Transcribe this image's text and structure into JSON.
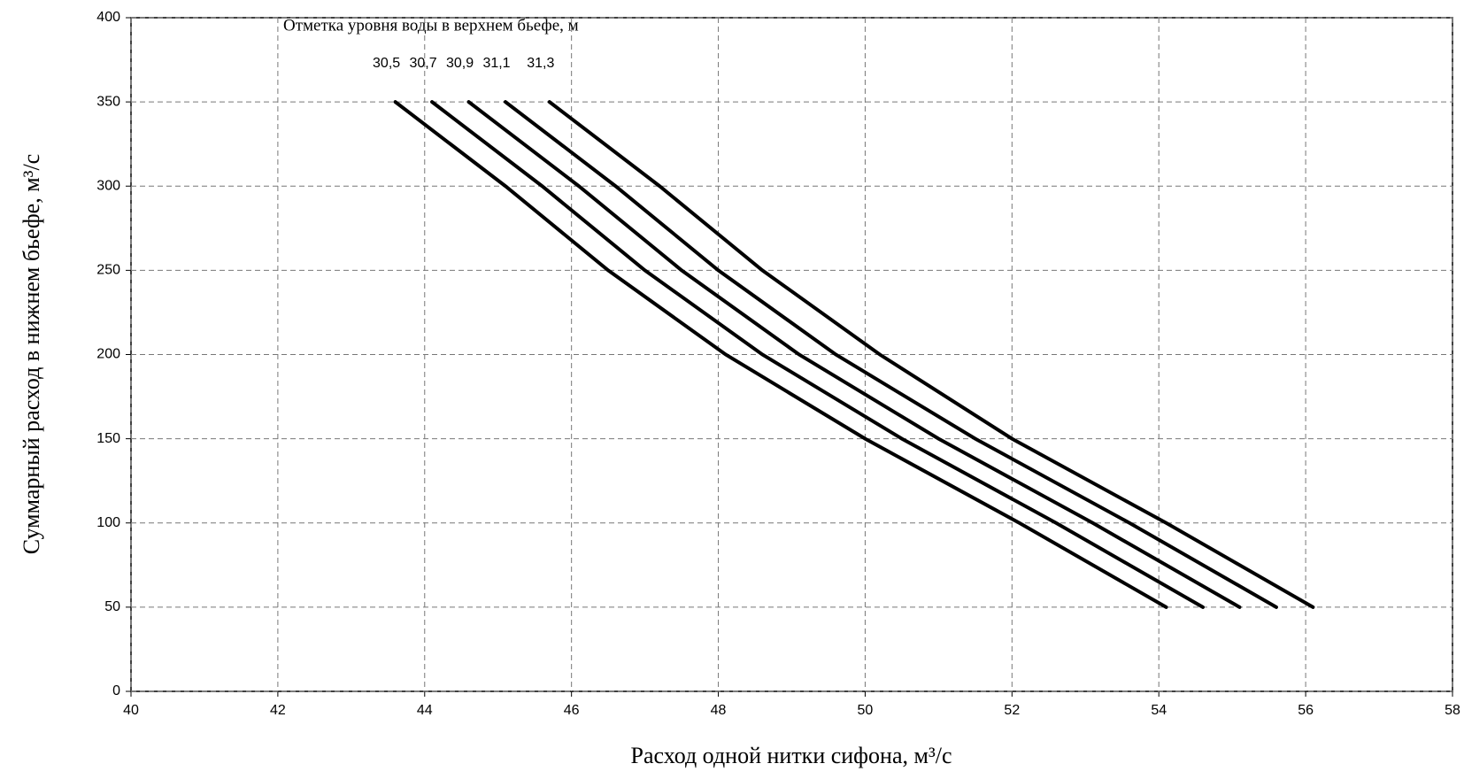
{
  "chart_data": {
    "type": "line",
    "annotation": "Отметка уровня воды в верхнем бьефе, м",
    "x_label": "Расход одной нитки сифона, м³/с",
    "y_label": "Суммарный расход в нижнем бьефе, м³/с",
    "xlim": [
      40,
      58
    ],
    "xticks": [
      40,
      42,
      44,
      46,
      48,
      50,
      52,
      54,
      56,
      58
    ],
    "ylim": [
      0,
      400
    ],
    "yticks": [
      0,
      50,
      100,
      150,
      200,
      250,
      300,
      350,
      400
    ],
    "grid": true,
    "series": [
      {
        "name": "30,5",
        "color": "#000000",
        "x": [
          43.6,
          45.1,
          46.5,
          48.1,
          50.0,
          52.1,
          54.1
        ],
        "values": [
          350,
          300,
          250,
          200,
          150,
          100,
          50
        ]
      },
      {
        "name": "30,7",
        "color": "#000000",
        "x": [
          44.1,
          45.6,
          47.0,
          48.6,
          50.5,
          52.6,
          54.6
        ],
        "values": [
          350,
          300,
          250,
          200,
          150,
          100,
          50
        ]
      },
      {
        "name": "30,9",
        "color": "#000000",
        "x": [
          44.6,
          46.1,
          47.5,
          49.1,
          51.0,
          53.1,
          55.1
        ],
        "values": [
          350,
          300,
          250,
          200,
          150,
          100,
          50
        ]
      },
      {
        "name": "31,1",
        "color": "#000000",
        "x": [
          45.1,
          46.6,
          48.0,
          49.6,
          51.5,
          53.6,
          55.6
        ],
        "values": [
          350,
          300,
          250,
          200,
          150,
          100,
          50
        ]
      },
      {
        "name": "31,3",
        "color": "#000000",
        "x": [
          45.7,
          47.2,
          48.6,
          50.2,
          52.0,
          54.1,
          56.1
        ],
        "values": [
          350,
          300,
          250,
          200,
          150,
          100,
          50
        ]
      }
    ]
  }
}
